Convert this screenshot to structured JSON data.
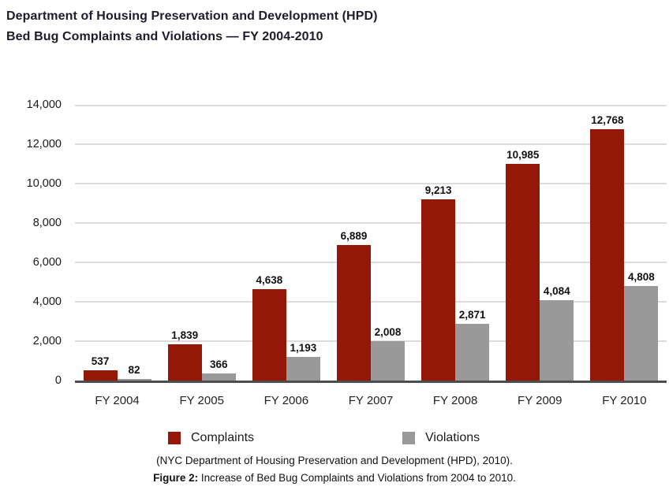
{
  "title": {
    "line1": "Department of Housing Preservation and Development (HPD)",
    "line2": "Bed Bug Complaints and Violations — FY 2004-2010"
  },
  "chart_data": {
    "type": "bar",
    "title": "Department of Housing Preservation and Development (HPD) Bed Bug Complaints and Violations — FY 2004-2010",
    "categories": [
      "FY 2004",
      "FY 2005",
      "FY 2006",
      "FY 2007",
      "FY 2008",
      "FY 2009",
      "FY 2010"
    ],
    "series": [
      {
        "name": "Complaints",
        "color": "#941808",
        "values": [
          537,
          1839,
          4638,
          6889,
          9213,
          10985,
          12768
        ],
        "labels": [
          "537",
          "1,839",
          "4,638",
          "6,889",
          "9,213",
          "10,985",
          "12,768"
        ]
      },
      {
        "name": "Violations",
        "color": "#999999",
        "values": [
          82,
          366,
          1193,
          2008,
          2871,
          4084,
          4808
        ],
        "labels": [
          "82",
          "366",
          "1,193",
          "2,008",
          "2,871",
          "4,084",
          "4,808"
        ]
      }
    ],
    "xlabel": "",
    "ylabel": "",
    "ylim": [
      0,
      14000
    ],
    "ytick_interval": 2000,
    "yticks": [
      "0",
      "2,000",
      "4,000",
      "6,000",
      "8,000",
      "10,000",
      "12,000",
      "14,000"
    ],
    "grid": true,
    "legend_position": "bottom"
  },
  "caption": {
    "source": "(NYC Department of Housing Preservation and Development (HPD), 2010).",
    "figure_label": "Figure 2:",
    "figure_text": " Increase of Bed Bug Complaints and Violations from 2004 to 2010."
  },
  "colors": {
    "complaints": "#941808",
    "violations": "#999999",
    "gridline": "#dcdcdc",
    "axis": "#4d4d4d",
    "title_text": "#1c1c2e"
  }
}
